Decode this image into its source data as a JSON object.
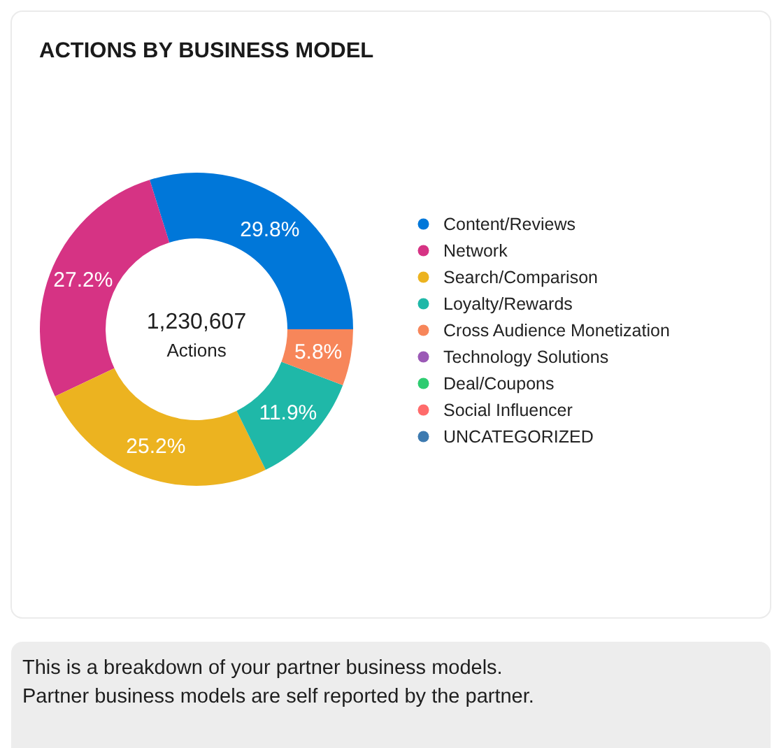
{
  "chart_data": {
    "type": "donut",
    "title": "ACTIONS BY BUSINESS MODEL",
    "categories": [
      "Content/Reviews",
      "Network",
      "Search/Comparison",
      "Loyalty/Rewards",
      "Cross Audience Monetization",
      "Technology Solutions",
      "Deal/Coupons",
      "Social Influencer",
      "UNCATEGORIZED"
    ],
    "values": [
      29.8,
      27.2,
      25.2,
      11.9,
      5.8,
      0,
      0,
      0,
      0
    ],
    "colors": [
      "#0077d9",
      "#d63384",
      "#ecb320",
      "#1fb8a8",
      "#f7865a",
      "#9b59b6",
      "#2ecc71",
      "#ff6b6b",
      "#3d7ab0"
    ],
    "value_labels": [
      "29.8%",
      "27.2%",
      "25.2%",
      "11.9%",
      "5.8%",
      null,
      null,
      null,
      null
    ],
    "annotations": [
      "1,230,607",
      "Actions",
      "This is a breakdown of your partner business models.",
      "Partner business models are self reported by the partner."
    ],
    "legend": "right"
  }
}
